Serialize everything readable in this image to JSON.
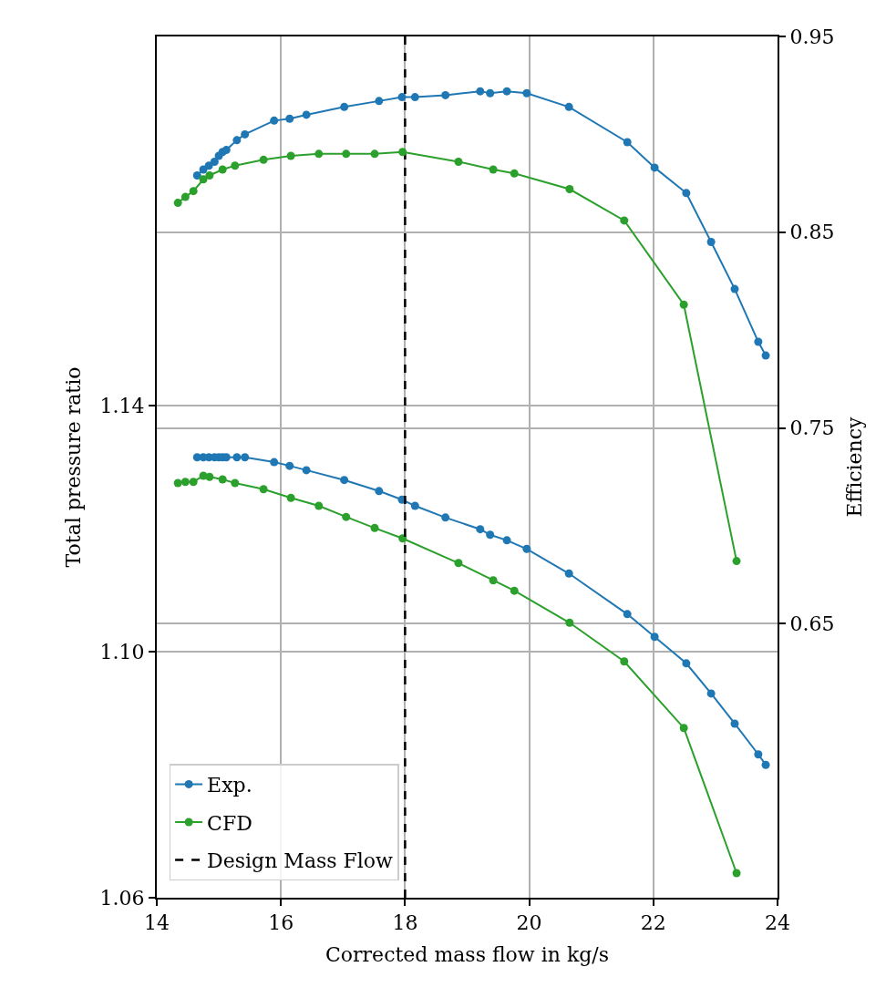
{
  "chart_data": {
    "type": "line",
    "xlabel": "Corrected mass flow in kg/s",
    "ylabel": "Total pressure ratio",
    "y2label": "Efficiency",
    "xlim": [
      14,
      24
    ],
    "xticks": [
      14,
      16,
      18,
      20,
      22,
      24
    ],
    "ylim": [
      1.06,
      1.2
    ],
    "yticks": [
      1.06,
      {
        "value": 1.1,
        "label": "1.10"
      },
      1.14
    ],
    "y2lim": [
      0.51,
      0.95
    ],
    "y2ticks": [
      0.65,
      0.75,
      0.85,
      0.95
    ],
    "grid": true,
    "legend": "bottom left",
    "marker": "circle",
    "line_style": "solid",
    "series": [
      {
        "name": "Exp.",
        "color": "#1f77b4",
        "axis": "y2",
        "x": [
          14.65,
          14.75,
          14.84,
          14.93,
          15.0,
          15.06,
          15.12,
          15.29,
          15.42,
          15.89,
          16.14,
          16.41,
          17.02,
          17.58,
          17.95,
          18.16,
          18.65,
          19.21,
          19.37,
          19.64,
          19.96,
          20.64,
          21.58,
          22.02,
          22.53,
          22.93,
          23.31,
          23.69,
          23.81
        ],
        "values": [
          0.879,
          0.882,
          0.884,
          0.886,
          0.889,
          0.891,
          0.892,
          0.897,
          0.9,
          0.907,
          0.908,
          0.91,
          0.914,
          0.917,
          0.919,
          0.919,
          0.92,
          0.922,
          0.921,
          0.922,
          0.921,
          0.914,
          0.896,
          0.883,
          0.87,
          0.845,
          0.821,
          0.794,
          0.787
        ]
      },
      {
        "color": "#1f77b4",
        "x": [
          14.65,
          14.75,
          14.84,
          14.93,
          15.0,
          15.06,
          15.12,
          15.29,
          15.42,
          15.89,
          16.14,
          16.41,
          17.02,
          17.58,
          17.95,
          18.16,
          18.65,
          19.21,
          19.37,
          19.64,
          19.96,
          20.64,
          21.58,
          22.02,
          22.53,
          22.93,
          23.31,
          23.69,
          23.81
        ],
        "values": [
          1.1316,
          1.1316,
          1.1316,
          1.1316,
          1.1316,
          1.1316,
          1.1316,
          1.1316,
          1.1316,
          1.1308,
          1.1302,
          1.1295,
          1.1279,
          1.1261,
          1.1247,
          1.1237,
          1.1218,
          1.1199,
          1.119,
          1.1181,
          1.1167,
          1.1127,
          1.1061,
          1.1024,
          1.0981,
          1.0932,
          1.0883,
          1.0833,
          1.0816
        ]
      },
      {
        "name": "CFD",
        "color": "#2ca02c",
        "axis": "y2",
        "x": [
          14.34,
          14.46,
          14.59,
          14.75,
          14.85,
          15.06,
          15.26,
          15.72,
          16.16,
          16.61,
          17.05,
          17.51,
          17.96,
          18.86,
          19.42,
          19.76,
          20.65,
          21.53,
          22.49,
          23.34
        ],
        "values": [
          0.865,
          0.868,
          0.871,
          0.877,
          0.879,
          0.882,
          0.884,
          0.887,
          0.889,
          0.89,
          0.89,
          0.89,
          0.891,
          0.886,
          0.882,
          0.88,
          0.872,
          0.856,
          0.813,
          0.682
        ]
      },
      {
        "color": "#2ca02c",
        "x": [
          14.34,
          14.46,
          14.59,
          14.75,
          14.85,
          15.06,
          15.26,
          15.72,
          16.16,
          16.61,
          17.05,
          17.51,
          17.96,
          18.86,
          19.42,
          19.76,
          20.65,
          21.53,
          22.49,
          23.34
        ],
        "values": [
          1.1274,
          1.1276,
          1.1276,
          1.1286,
          1.1284,
          1.128,
          1.1274,
          1.1264,
          1.125,
          1.1237,
          1.1219,
          1.1201,
          1.1184,
          1.1144,
          1.1116,
          1.1099,
          1.1047,
          1.0984,
          1.0876,
          1.064
        ]
      }
    ],
    "ref_lines": [
      {
        "axis": "x",
        "value": 18,
        "label": "Design Mass Flow",
        "color": "#000000",
        "line_style": "dashed"
      }
    ]
  }
}
